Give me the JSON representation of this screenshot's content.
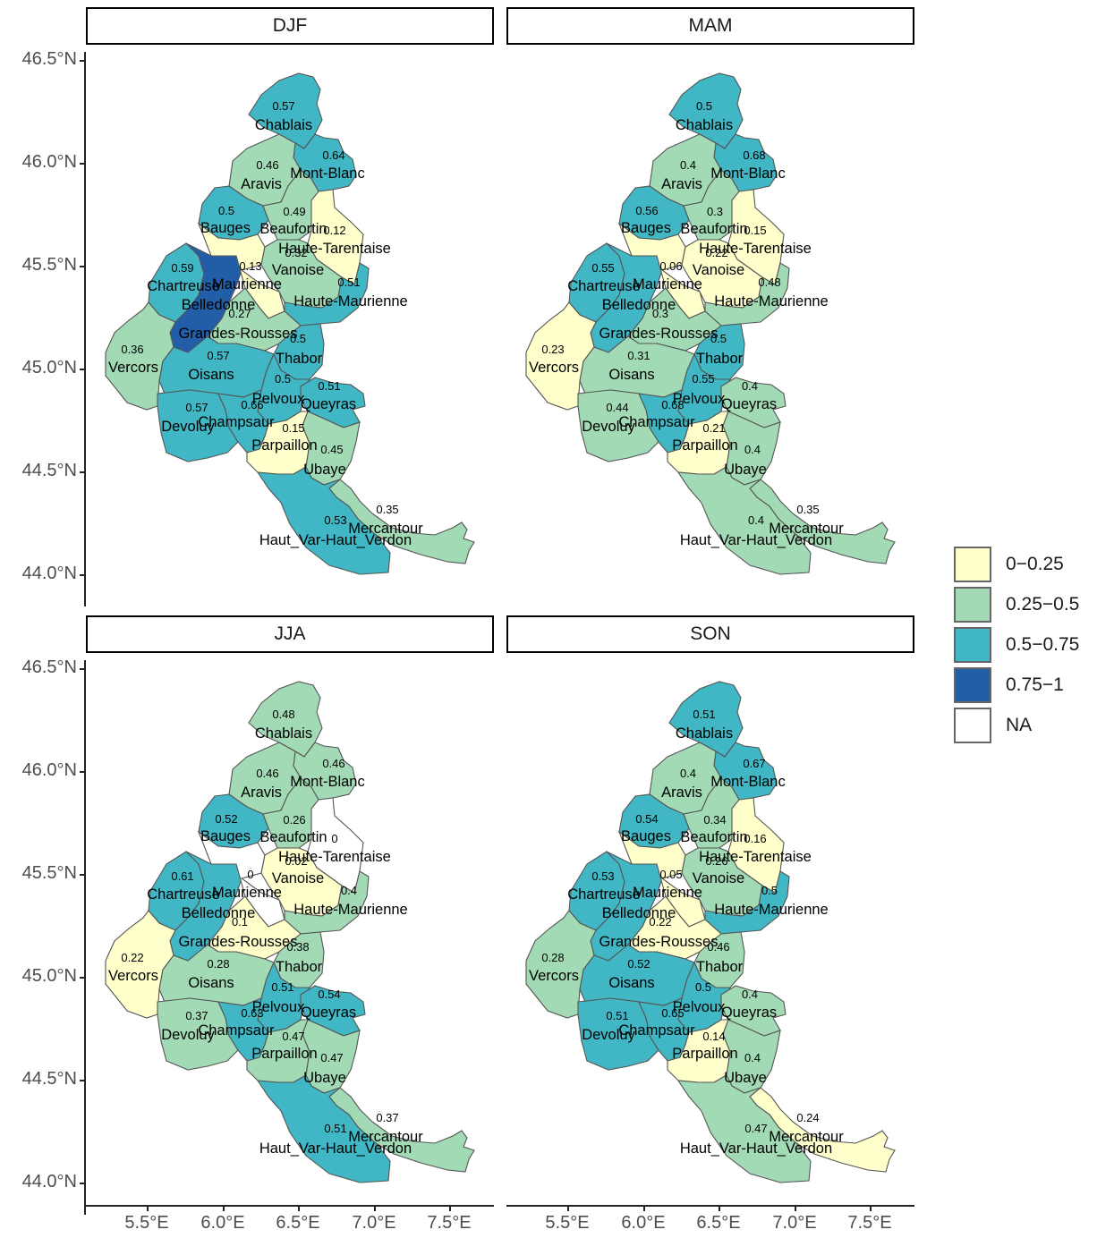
{
  "facets": [
    "DJF",
    "MAM",
    "JJA",
    "SON"
  ],
  "axis": {
    "y_ticks": [
      "46.5°N",
      "46.0°N",
      "45.5°N",
      "45.0°N",
      "44.5°N",
      "44.0°N"
    ],
    "x_ticks": [
      "5.5°E",
      "6.0°E",
      "6.5°E",
      "7.0°E",
      "7.5°E"
    ]
  },
  "legend": {
    "items": [
      {
        "label": "0−0.25",
        "color": "#ffffcc"
      },
      {
        "label": "0.25−0.5",
        "color": "#a1dab4"
      },
      {
        "label": "0.5−0.75",
        "color": "#41b6c4"
      },
      {
        "label": "0.75−1",
        "color": "#225ea8"
      },
      {
        "label": "NA",
        "color": "#ffffff"
      }
    ]
  },
  "massifs": [
    {
      "name": "Chablais",
      "values": {
        "DJF": "0.57",
        "MAM": "0.5",
        "JJA": "0.48",
        "SON": "0.51"
      }
    },
    {
      "name": "Mont-Blanc",
      "values": {
        "DJF": "0.64",
        "MAM": "0.68",
        "JJA": "0.46",
        "SON": "0.67"
      }
    },
    {
      "name": "Aravis",
      "values": {
        "DJF": "0.46",
        "MAM": "0.4",
        "JJA": "0.46",
        "SON": "0.4"
      }
    },
    {
      "name": "Bauges",
      "values": {
        "DJF": "0.5",
        "MAM": "0.56",
        "JJA": "0.52",
        "SON": "0.54"
      }
    },
    {
      "name": "Beaufortin",
      "values": {
        "DJF": "0.49",
        "MAM": "0.3",
        "JJA": "0.26",
        "SON": "0.34"
      }
    },
    {
      "name": "Haute-Tarentaise",
      "values": {
        "DJF": "0.12",
        "MAM": "0.15",
        "JJA": "0",
        "SON": "0.16"
      }
    },
    {
      "name": "Chartreuse",
      "values": {
        "DJF": "0.59",
        "MAM": "0.55",
        "JJA": "0.61",
        "SON": "0.53"
      }
    },
    {
      "name": "Belledonne",
      "values": {
        "DJF": "",
        "MAM": "",
        "JJA": "",
        "SON": ""
      }
    },
    {
      "name": "Maurienne",
      "values": {
        "DJF": "0.13",
        "MAM": "0.06",
        "JJA": "0",
        "SON": "0.05"
      }
    },
    {
      "name": "Vanoise",
      "values": {
        "DJF": "0.32",
        "MAM": "0.22",
        "JJA": "0.02",
        "SON": "0.26"
      }
    },
    {
      "name": "Haute-Maurienne",
      "values": {
        "DJF": "0.51",
        "MAM": "0.48",
        "JJA": "0.4",
        "SON": "0.5"
      }
    },
    {
      "name": "Grandes-Rousses",
      "values": {
        "DJF": "0.27",
        "MAM": "0.3",
        "JJA": "0.1",
        "SON": "0.22"
      }
    },
    {
      "name": "Thabor",
      "values": {
        "DJF": "0.5",
        "MAM": "0.5",
        "JJA": "0.38",
        "SON": "0.46"
      }
    },
    {
      "name": "Vercors",
      "values": {
        "DJF": "0.36",
        "MAM": "0.23",
        "JJA": "0.22",
        "SON": "0.28"
      }
    },
    {
      "name": "Oisans",
      "values": {
        "DJF": "0.57",
        "MAM": "0.31",
        "JJA": "0.28",
        "SON": "0.52"
      }
    },
    {
      "name": "Pelvoux",
      "values": {
        "DJF": "0.5",
        "MAM": "0.55",
        "JJA": "0.51",
        "SON": "0.5"
      }
    },
    {
      "name": "Queyras",
      "values": {
        "DJF": "0.51",
        "MAM": "0.4",
        "JJA": "0.54",
        "SON": "0.4"
      }
    },
    {
      "name": "Devoluy",
      "values": {
        "DJF": "0.57",
        "MAM": "0.44",
        "JJA": "0.37",
        "SON": "0.51"
      }
    },
    {
      "name": "Champsaur",
      "values": {
        "DJF": "0.66",
        "MAM": "0.68",
        "JJA": "0.63",
        "SON": "0.65"
      }
    },
    {
      "name": "Parpaillon",
      "values": {
        "DJF": "0.15",
        "MAM": "0.21",
        "JJA": "0.47",
        "SON": "0.14"
      }
    },
    {
      "name": "Ubaye",
      "values": {
        "DJF": "0.45",
        "MAM": "0.4",
        "JJA": "0.47",
        "SON": "0.4"
      }
    },
    {
      "name": "Mercantour",
      "values": {
        "DJF": "0.35",
        "MAM": "0.35",
        "JJA": "0.37",
        "SON": "0.24"
      }
    },
    {
      "name": "Haut_Var-Haut_Verdon",
      "values": {
        "DJF": "0.53",
        "MAM": "0.4",
        "JJA": "0.51",
        "SON": "0.47"
      }
    }
  ],
  "special_fill": {
    "Belledonne": {
      "DJF": "0.75−1",
      "MAM": "0.5−0.75",
      "JJA": "0.5−0.75",
      "SON": "0.5−0.75"
    },
    "Haute-Tarentaise": {
      "JJA": "NA"
    },
    "Maurienne": {
      "JJA": "NA"
    }
  }
}
